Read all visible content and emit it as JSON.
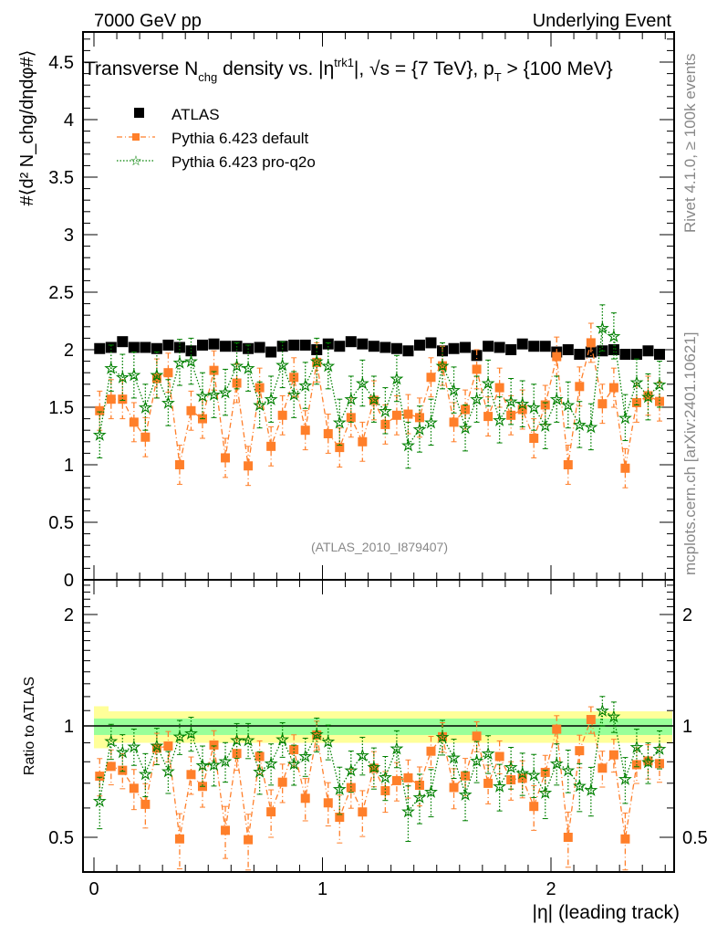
{
  "header": {
    "left": "7000 GeV pp",
    "right": "Underlying Event"
  },
  "side_labels": {
    "rivet": "Rivet 4.1.0, ≥ 100k events",
    "mcplots": "mcplots.cern.ch [arXiv:2401.10621]"
  },
  "analysis_id": "(ATLAS_2010_I879407)",
  "colors": {
    "atlas": "#000000",
    "default": "#ff7f2a",
    "proq2o": "#008000",
    "band_outer": "#ffff99",
    "band_inner": "#99ff99"
  },
  "chart_data": [
    {
      "type": "scatter",
      "title_parts": {
        "a": "Transverse N",
        "a_sub": "chg",
        "b": " density vs. |η",
        "b_sup": "trk1",
        "c": "|, √s = {7 TeV}, p",
        "c_sub": "T",
        "d": " > {100 MeV}"
      },
      "ylabel": "#⟨d² N_chg/dηdφ#⟩",
      "xlabel": "|η| (leading track)",
      "xlim": [
        -0.05,
        2.54
      ],
      "ylim": [
        0,
        4.76
      ],
      "yticks": [
        "0",
        "0.5",
        "1",
        "1.5",
        "2",
        "2.5",
        "3",
        "3.5",
        "4",
        "4.5"
      ],
      "xticks": [
        "0",
        "1",
        "2"
      ],
      "legend_position": "top-left",
      "x": [
        0.025,
        0.075,
        0.125,
        0.175,
        0.225,
        0.275,
        0.325,
        0.375,
        0.425,
        0.475,
        0.525,
        0.575,
        0.625,
        0.675,
        0.725,
        0.775,
        0.825,
        0.875,
        0.925,
        0.975,
        1.025,
        1.075,
        1.125,
        1.175,
        1.225,
        1.275,
        1.325,
        1.375,
        1.425,
        1.475,
        1.525,
        1.575,
        1.625,
        1.675,
        1.725,
        1.775,
        1.825,
        1.875,
        1.925,
        1.975,
        2.025,
        2.075,
        2.125,
        2.175,
        2.225,
        2.275,
        2.325,
        2.375,
        2.425,
        2.475
      ],
      "series": [
        {
          "name": "ATLAS",
          "key": "atlas",
          "yerr": 0.02,
          "values": [
            2.01,
            2.02,
            2.07,
            2.02,
            2.02,
            2.01,
            2.04,
            2.02,
            1.99,
            2.04,
            2.05,
            2.03,
            2.03,
            2.01,
            2.02,
            1.98,
            2.03,
            2.04,
            2.04,
            2.0,
            2.05,
            2.03,
            2.07,
            2.05,
            2.03,
            2.02,
            2.01,
            1.99,
            2.04,
            2.06,
            1.99,
            2.01,
            2.02,
            1.95,
            2.03,
            2.02,
            2.0,
            2.05,
            2.03,
            2.03,
            1.98,
            2.0,
            1.96,
            1.98,
            1.99,
            2.0,
            1.96,
            1.96,
            1.99,
            1.96
          ]
        },
        {
          "name": "Pythia 6.423 default",
          "key": "default",
          "yerr": 0.17,
          "values": [
            1.47,
            1.57,
            1.57,
            1.37,
            1.24,
            1.75,
            1.8,
            1.0,
            1.47,
            1.4,
            1.82,
            1.06,
            1.71,
            0.99,
            1.67,
            1.16,
            1.43,
            1.76,
            1.3,
            1.89,
            1.27,
            1.15,
            1.41,
            1.2,
            1.56,
            1.35,
            1.43,
            1.44,
            1.41,
            1.76,
            1.86,
            1.37,
            1.48,
            1.83,
            1.42,
            1.67,
            1.43,
            1.48,
            1.23,
            1.52,
            1.94,
            1.0,
            1.68,
            2.06,
            1.53,
            1.67,
            0.97,
            1.54,
            1.6,
            1.55
          ]
        },
        {
          "name": "Pythia 6.423 pro-q2o",
          "key": "proq2o",
          "yerr": 0.2,
          "values": [
            1.26,
            1.84,
            1.76,
            1.78,
            1.5,
            1.78,
            1.54,
            1.89,
            1.9,
            1.6,
            1.61,
            1.63,
            1.86,
            1.84,
            1.52,
            1.57,
            1.87,
            1.61,
            1.69,
            1.9,
            1.86,
            1.37,
            1.57,
            1.71,
            1.57,
            1.47,
            1.75,
            1.17,
            1.31,
            1.37,
            1.86,
            1.65,
            1.32,
            1.57,
            1.71,
            1.39,
            1.55,
            1.53,
            1.5,
            1.34,
            1.57,
            1.52,
            1.35,
            1.33,
            2.19,
            2.12,
            1.41,
            1.72,
            1.59,
            1.7
          ]
        }
      ]
    },
    {
      "type": "scatter",
      "ylabel": "Ratio to ATLAS",
      "yscale": "log",
      "ylim": [
        0.4,
        2.48
      ],
      "yticks": [
        "0.5",
        "1",
        "2"
      ],
      "band_outer": [
        0.9,
        1.095
      ],
      "band_inner": [
        0.945,
        1.047
      ],
      "reference": 1
    }
  ]
}
